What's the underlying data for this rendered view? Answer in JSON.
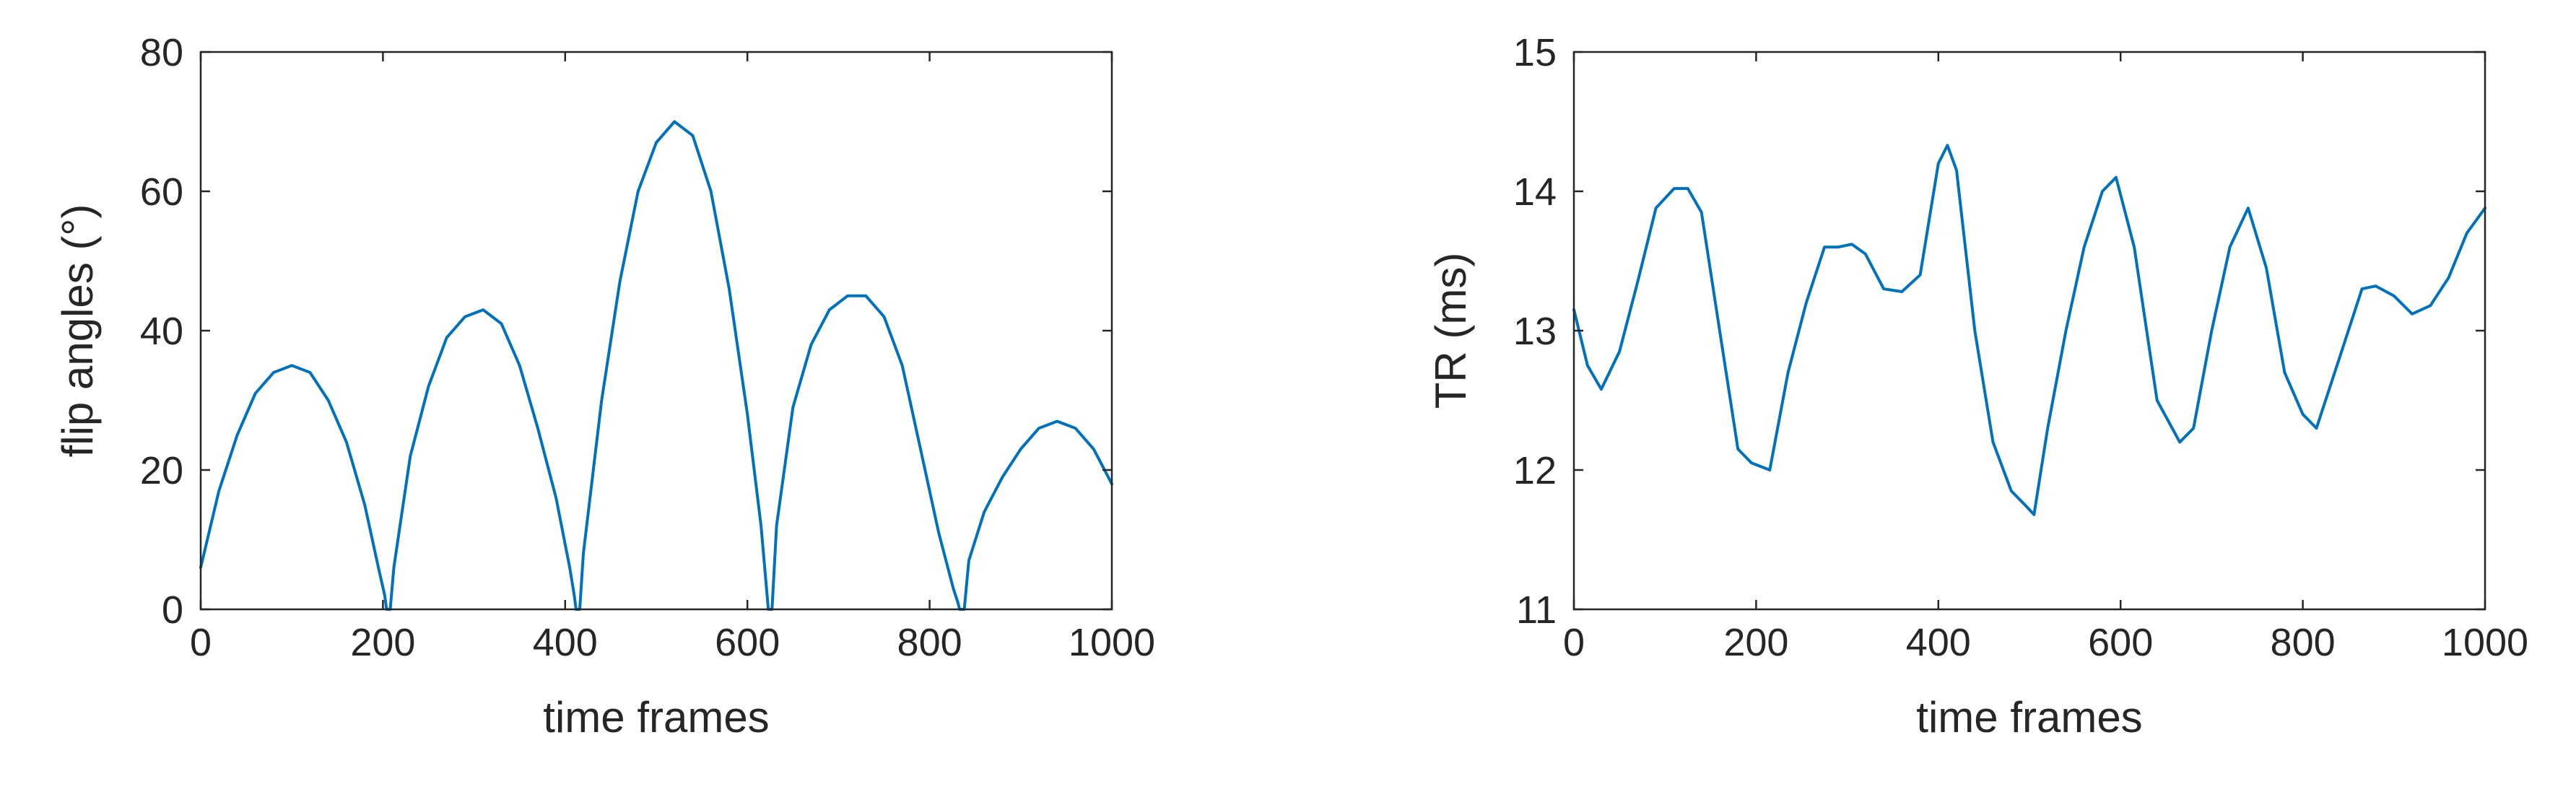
{
  "chart_data": [
    {
      "type": "line",
      "title": "",
      "xlabel": "time frames",
      "ylabel": "flip angles (°)",
      "xlim": [
        0,
        1000
      ],
      "ylim": [
        0,
        80
      ],
      "xticks": [
        "0",
        "200",
        "400",
        "600",
        "800",
        "1000"
      ],
      "yticks": [
        "0",
        "20",
        "40",
        "60",
        "80"
      ],
      "grid": false,
      "line_color": "#0072BD",
      "series": [
        {
          "x": [
            0,
            20,
            40,
            60,
            80,
            100,
            120,
            140,
            160,
            180,
            195,
            202,
            204,
            206,
            208,
            212,
            230,
            250,
            270,
            290,
            310,
            330,
            350,
            370,
            390,
            405,
            410,
            412,
            414,
            416,
            420,
            440,
            460,
            480,
            500,
            520,
            540,
            560,
            580,
            600,
            615,
            621,
            623,
            625,
            627,
            632,
            650,
            670,
            690,
            710,
            730,
            750,
            770,
            790,
            810,
            826,
            831,
            833,
            835,
            838,
            843,
            860,
            880,
            900,
            920,
            940,
            960,
            980,
            1000
          ],
          "y": [
            6,
            17,
            25,
            31,
            34,
            35,
            34,
            30,
            24,
            15,
            6,
            2,
            0,
            0,
            0,
            6,
            22,
            32,
            39,
            42,
            43,
            41,
            35,
            26,
            16,
            6,
            2,
            0,
            0,
            0,
            8,
            30,
            47,
            60,
            67,
            70,
            68,
            60,
            46,
            28,
            12,
            3,
            0,
            0,
            0,
            12,
            29,
            38,
            43,
            45,
            45,
            42,
            35,
            23,
            11,
            3,
            1,
            0,
            0,
            0,
            7,
            14,
            19,
            23,
            26,
            27,
            26,
            23,
            18
          ]
        }
      ]
    },
    {
      "type": "line",
      "title": "",
      "xlabel": "time frames",
      "ylabel": "TR (ms)",
      "xlim": [
        0,
        1000
      ],
      "ylim": [
        11,
        15
      ],
      "xticks": [
        "0",
        "200",
        "400",
        "600",
        "800",
        "1000"
      ],
      "yticks": [
        "11",
        "12",
        "13",
        "14",
        "15"
      ],
      "grid": false,
      "line_color": "#0072BD",
      "series": [
        {
          "x": [
            0,
            15,
            30,
            50,
            70,
            90,
            110,
            125,
            140,
            160,
            180,
            195,
            215,
            235,
            255,
            275,
            290,
            305,
            320,
            340,
            360,
            380,
            400,
            410,
            420,
            440,
            460,
            480,
            495,
            505,
            520,
            540,
            560,
            580,
            595,
            615,
            640,
            665,
            680,
            700,
            720,
            740,
            760,
            780,
            800,
            815,
            840,
            865,
            880,
            900,
            920,
            940,
            960,
            980,
            1000
          ],
          "y": [
            13.15,
            12.75,
            12.58,
            12.85,
            13.35,
            13.88,
            14.02,
            14.02,
            13.85,
            13.0,
            12.15,
            12.05,
            12.0,
            12.7,
            13.2,
            13.6,
            13.6,
            13.62,
            13.55,
            13.3,
            13.28,
            13.4,
            14.2,
            14.33,
            14.15,
            13.0,
            12.2,
            11.85,
            11.75,
            11.68,
            12.3,
            13.0,
            13.6,
            14.0,
            14.1,
            13.6,
            12.5,
            12.2,
            12.3,
            13.0,
            13.6,
            13.88,
            13.45,
            12.7,
            12.4,
            12.3,
            12.8,
            13.3,
            13.32,
            13.25,
            13.12,
            13.18,
            13.38,
            13.7,
            13.88
          ]
        }
      ]
    }
  ]
}
